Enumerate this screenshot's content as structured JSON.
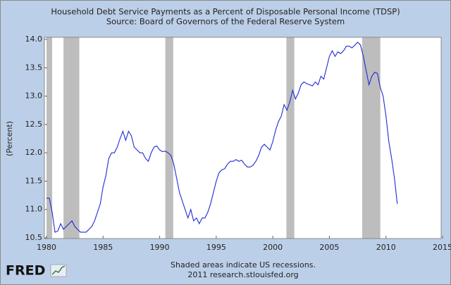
{
  "chart_data": {
    "type": "line",
    "title": "Household Debt Service Payments as a Percent of Disposable Personal Income (TDSP)",
    "subtitle": "Source: Board of Governors of the Federal Reserve System",
    "y_label": "(Percent)",
    "note": "Shaded areas indicate US recessions.",
    "credit": "2011 research.stlouisfed.org",
    "logo": "FRED",
    "color": "#1f2bd6",
    "recession_color": "#bdbdbd",
    "xlim": [
      1980,
      2015
    ],
    "ylim": [
      10.5,
      14.0
    ],
    "xticks": [
      1980,
      1985,
      1990,
      1995,
      2000,
      2005,
      2010,
      2015
    ],
    "yticks": [
      10.5,
      {
        "value": 11,
        "label": "11.0"
      },
      11.5,
      {
        "value": 12,
        "label": "12.0"
      },
      12.5,
      {
        "value": 13,
        "label": "13.0"
      },
      13.5,
      {
        "value": 14,
        "label": "14.0"
      }
    ],
    "recessions": [
      [
        1980.0,
        1980.5
      ],
      [
        1981.5,
        1982.9
      ],
      [
        1990.5,
        1991.2
      ],
      [
        2001.2,
        2001.9
      ],
      [
        2007.9,
        2009.5
      ]
    ],
    "x": [
      1980.0,
      1980.25,
      1980.5,
      1980.75,
      1981.0,
      1981.25,
      1981.5,
      1981.75,
      1982.0,
      1982.25,
      1982.5,
      1982.75,
      1983.0,
      1983.25,
      1983.5,
      1983.75,
      1984.0,
      1984.25,
      1984.5,
      1984.75,
      1985.0,
      1985.25,
      1985.5,
      1985.75,
      1986.0,
      1986.25,
      1986.5,
      1986.75,
      1987.0,
      1987.25,
      1987.5,
      1987.75,
      1988.0,
      1988.25,
      1988.5,
      1988.75,
      1989.0,
      1989.25,
      1989.5,
      1989.75,
      1990.0,
      1990.25,
      1990.5,
      1990.75,
      1991.0,
      1991.25,
      1991.5,
      1991.75,
      1992.0,
      1992.25,
      1992.5,
      1992.75,
      1993.0,
      1993.25,
      1993.5,
      1993.75,
      1994.0,
      1994.25,
      1994.5,
      1994.75,
      1995.0,
      1995.25,
      1995.5,
      1995.75,
      1996.0,
      1996.25,
      1996.5,
      1996.75,
      1997.0,
      1997.25,
      1997.5,
      1997.75,
      1998.0,
      1998.25,
      1998.5,
      1998.75,
      1999.0,
      1999.25,
      1999.5,
      1999.75,
      2000.0,
      2000.25,
      2000.5,
      2000.75,
      2001.0,
      2001.25,
      2001.5,
      2001.75,
      2002.0,
      2002.25,
      2002.5,
      2002.75,
      2003.0,
      2003.25,
      2003.5,
      2003.75,
      2004.0,
      2004.25,
      2004.5,
      2004.75,
      2005.0,
      2005.25,
      2005.5,
      2005.75,
      2006.0,
      2006.25,
      2006.5,
      2006.75,
      2007.0,
      2007.25,
      2007.5,
      2007.75,
      2008.0,
      2008.25,
      2008.5,
      2008.75,
      2009.0,
      2009.25,
      2009.5,
      2009.75,
      2010.0,
      2010.25,
      2010.5,
      2010.75,
      2011.0
    ],
    "values": [
      11.2,
      11.2,
      10.95,
      10.6,
      10.62,
      10.75,
      10.65,
      10.7,
      10.75,
      10.8,
      10.7,
      10.65,
      10.6,
      10.6,
      10.6,
      10.65,
      10.7,
      10.8,
      10.95,
      11.1,
      11.4,
      11.6,
      11.9,
      12.0,
      12.0,
      12.1,
      12.25,
      12.38,
      12.22,
      12.38,
      12.3,
      12.1,
      12.05,
      12.0,
      12.0,
      11.9,
      11.85,
      12.0,
      12.1,
      12.12,
      12.05,
      12.02,
      12.03,
      12.0,
      11.95,
      11.8,
      11.55,
      11.3,
      11.15,
      11.0,
      10.85,
      11.0,
      10.8,
      10.85,
      10.75,
      10.85,
      10.85,
      10.95,
      11.1,
      11.3,
      11.5,
      11.65,
      11.7,
      11.72,
      11.8,
      11.85,
      11.85,
      11.88,
      11.85,
      11.87,
      11.8,
      11.75,
      11.75,
      11.78,
      11.85,
      11.95,
      12.1,
      12.15,
      12.1,
      12.05,
      12.2,
      12.4,
      12.55,
      12.65,
      12.85,
      12.75,
      12.9,
      13.1,
      12.95,
      13.05,
      13.2,
      13.25,
      13.22,
      13.2,
      13.18,
      13.25,
      13.2,
      13.35,
      13.3,
      13.5,
      13.7,
      13.8,
      13.7,
      13.78,
      13.75,
      13.8,
      13.88,
      13.88,
      13.85,
      13.9,
      13.95,
      13.9,
      13.7,
      13.45,
      13.2,
      13.35,
      13.42,
      13.4,
      13.15,
      13.0,
      12.65,
      12.2,
      11.9,
      11.55,
      11.1
    ]
  }
}
